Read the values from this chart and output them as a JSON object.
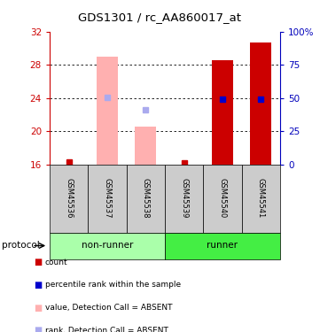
{
  "title": "GDS1301 / rc_AA860017_at",
  "samples": [
    "GSM45536",
    "GSM45537",
    "GSM45538",
    "GSM45539",
    "GSM45540",
    "GSM45541"
  ],
  "ylim_left": [
    16,
    32
  ],
  "ylim_right": [
    0,
    100
  ],
  "yticks_left": [
    16,
    20,
    24,
    28,
    32
  ],
  "yticks_right": [
    0,
    25,
    50,
    75,
    100
  ],
  "ytick_right_labels": [
    "0",
    "25",
    "50",
    "75",
    "100%"
  ],
  "bar_bottom": 16,
  "absent_value_bars": {
    "samples": [
      1,
      2
    ],
    "tops": [
      29.0,
      20.5
    ],
    "color": "#FFB0B0"
  },
  "present_value_bars": {
    "samples": [
      4,
      5
    ],
    "tops": [
      28.5,
      30.7
    ],
    "color": "#CC0000"
  },
  "red_squares": {
    "samples": [
      0,
      3
    ],
    "y_values": [
      16.3,
      16.2
    ],
    "color": "#CC0000",
    "size": 4
  },
  "blue_squares_present": {
    "samples": [
      4,
      5
    ],
    "y_values": [
      23.9,
      23.9
    ],
    "color": "#0000CC",
    "size": 5
  },
  "blue_squares_absent": {
    "samples": [
      1,
      2
    ],
    "y_values": [
      24.1,
      22.6
    ],
    "color": "#AAAAEE",
    "size": 5
  },
  "nonrunner_group": {
    "sample_indices": [
      0,
      1,
      2
    ],
    "label": "non-runner",
    "color": "#AAFFAA"
  },
  "runner_group": {
    "sample_indices": [
      3,
      4,
      5
    ],
    "label": "runner",
    "color": "#44EE44"
  },
  "axis_color_left": "#CC0000",
  "axis_color_right": "#0000BB",
  "sample_box_color": "#CCCCCC",
  "grid_color": "#000000",
  "bar_width": 0.55,
  "legend_items": [
    {
      "color": "#CC0000",
      "label": "count"
    },
    {
      "color": "#0000CC",
      "label": "percentile rank within the sample"
    },
    {
      "color": "#FFB0B0",
      "label": "value, Detection Call = ABSENT"
    },
    {
      "color": "#AAAAEE",
      "label": "rank, Detection Call = ABSENT"
    }
  ]
}
